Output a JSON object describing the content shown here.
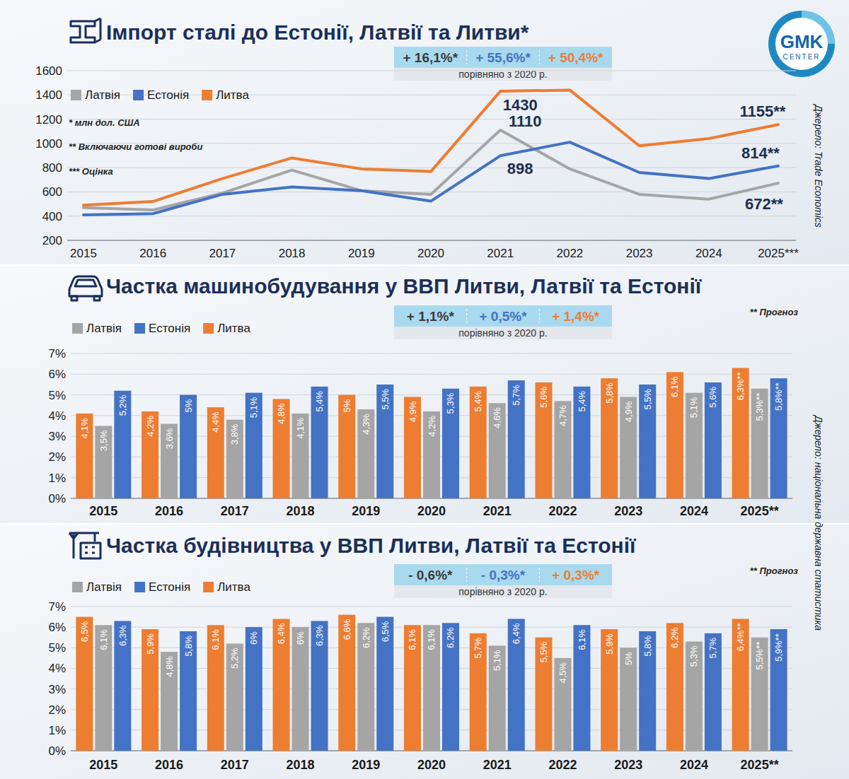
{
  "logo": {
    "line1": "GMK",
    "line2": "CENTER"
  },
  "chart_data": [
    {
      "type": "line",
      "title": "Імпорт сталі до Естонії, Латвії та Литви*",
      "subtitle": "порівняно з 2020 р.",
      "annotations": [
        "* млн дол. США",
        "** Включаючи готові вироби",
        "*** Оцінка"
      ],
      "source": "Джерело: Trade Economics",
      "categories": [
        "2015",
        "2016",
        "2017",
        "2018",
        "2019",
        "2020",
        "2021",
        "2022",
        "2023",
        "2024",
        "2025***"
      ],
      "ylim": [
        200,
        1600
      ],
      "yticks": [
        200,
        400,
        600,
        800,
        1000,
        1200,
        1400,
        1600
      ],
      "grid": true,
      "legend": "top-left",
      "series": [
        {
          "name": "Латвія",
          "color": "#a5a5a5",
          "change_label": "+ 16,1%*",
          "values": [
            470,
            450,
            590,
            780,
            610,
            579,
            1110,
            790,
            580,
            540,
            672
          ],
          "value_labels": [
            null,
            null,
            null,
            null,
            null,
            null,
            "1110",
            null,
            null,
            null,
            "672**"
          ]
        },
        {
          "name": "Естонія",
          "color": "#4472c4",
          "change_label": "+ 55,6%*",
          "values": [
            410,
            420,
            580,
            640,
            610,
            523,
            898,
            1010,
            760,
            710,
            814
          ],
          "value_labels": [
            null,
            null,
            null,
            null,
            null,
            null,
            "898",
            null,
            null,
            null,
            "814**"
          ]
        },
        {
          "name": "Литва",
          "color": "#ed7d31",
          "change_label": "+ 50,4%*",
          "values": [
            490,
            520,
            710,
            880,
            790,
            768,
            1430,
            1440,
            980,
            1040,
            1155
          ],
          "value_labels": [
            null,
            null,
            null,
            null,
            null,
            null,
            "1430",
            null,
            null,
            null,
            "1155**"
          ]
        }
      ]
    },
    {
      "type": "bar",
      "title": "Частка машинобудування у ВВП Литви, Латвії та Естонії",
      "subtitle": "порівняно з 2020 р.",
      "annotations": [
        "** Прогноз"
      ],
      "source": "Джерело: національна державна статистика",
      "categories": [
        "2015",
        "2016",
        "2017",
        "2018",
        "2019",
        "2020",
        "2021",
        "2022",
        "2023",
        "2024",
        "2025**"
      ],
      "ylim": [
        0,
        7
      ],
      "yticks": [
        {
          "value": 0,
          "label": "0%"
        },
        {
          "value": 1,
          "label": "1%"
        },
        {
          "value": 2,
          "label": "2%"
        },
        {
          "value": 3,
          "label": "3%"
        },
        {
          "value": 4,
          "label": "4%"
        },
        {
          "value": 5,
          "label": "5%"
        },
        {
          "value": 6,
          "label": "6%"
        },
        {
          "value": 7,
          "label": "7%"
        }
      ],
      "grid": true,
      "legend": "top-left",
      "data_labels": true,
      "series": [
        {
          "name": "Латвія",
          "color": "#a5a5a5",
          "change_label": "+ 1,1%*",
          "values": [
            3.5,
            3.6,
            3.8,
            4.1,
            4.3,
            4.2,
            4.6,
            4.7,
            4.9,
            5.1,
            5.3
          ],
          "value_labels": [
            "3,5%",
            "3,6%",
            "3,8%",
            "4,1%",
            "4,3%",
            "4,2%",
            "4,6%",
            "4,7%",
            "4,9%",
            "5,1%",
            "5,3%**"
          ]
        },
        {
          "name": "Естонія",
          "color": "#4472c4",
          "change_label": "+ 0,5%*",
          "values": [
            5.2,
            5,
            5.1,
            5.4,
            5.5,
            5.3,
            5.7,
            5.4,
            5.5,
            5.6,
            5.8
          ],
          "value_labels": [
            "5,2%",
            "5%",
            "5,1%",
            "5,4%",
            "5,5%",
            "5,3%",
            "5,7%",
            "5,4%",
            "5,5%",
            "5,6%",
            "5,8%**"
          ]
        },
        {
          "name": "Литва",
          "color": "#ed7d31",
          "change_label": "+ 1,4%*",
          "values": [
            4.1,
            4.2,
            4.4,
            4.8,
            5,
            4.9,
            5.4,
            5.6,
            5.8,
            6.1,
            6.3
          ],
          "value_labels": [
            "4,1%",
            "4,2%",
            "4,4%",
            "4,8%",
            "5%",
            "4,9%",
            "5,4%",
            "5,6%",
            "5,8%",
            "6,1%",
            "6,3%**"
          ]
        }
      ]
    },
    {
      "type": "bar",
      "title": "Частка будівництва у ВВП Литви, Латвії та Естонії",
      "subtitle": "порівняно з 2020 р.",
      "annotations": [
        "** Прогноз"
      ],
      "categories": [
        "2015",
        "2016",
        "2017",
        "2018",
        "2019",
        "2020",
        "2021",
        "2022",
        "2023",
        "2024",
        "2025**"
      ],
      "ylim": [
        0,
        7
      ],
      "yticks": [
        {
          "value": 0,
          "label": "0%"
        },
        {
          "value": 1,
          "label": "1%"
        },
        {
          "value": 2,
          "label": "2%"
        },
        {
          "value": 3,
          "label": "3%"
        },
        {
          "value": 4,
          "label": "4%"
        },
        {
          "value": 5,
          "label": "5%"
        },
        {
          "value": 6,
          "label": "6%"
        },
        {
          "value": 7,
          "label": "7%"
        }
      ],
      "grid": true,
      "legend": "top-left",
      "data_labels": true,
      "series": [
        {
          "name": "Латвія",
          "color": "#a5a5a5",
          "change_label": "- 0,6%*",
          "values": [
            6.1,
            4.8,
            5.2,
            6,
            6.2,
            6.1,
            5.1,
            4.5,
            5,
            5.3,
            5.5
          ],
          "value_labels": [
            "6,1%",
            "4,8%",
            "5,2%",
            "6%",
            "6,2%",
            "6,1%",
            "5,1%",
            "4,5%",
            "5%",
            "5,3%",
            "5,5%**"
          ]
        },
        {
          "name": "Естонія",
          "color": "#4472c4",
          "change_label": "- 0,3%*",
          "values": [
            6.3,
            5.8,
            6,
            6.3,
            6.5,
            6.2,
            6.4,
            6.1,
            5.8,
            5.7,
            5.9
          ],
          "value_labels": [
            "6,3%",
            "5,8%",
            "6%",
            "6,3%",
            "6,5%",
            "6,2%",
            "6,4%",
            "6,1%",
            "5,8%",
            "5,7%",
            "5,9%**"
          ]
        },
        {
          "name": "Литва",
          "color": "#ed7d31",
          "change_label": "+ 0,3%*",
          "values": [
            6.5,
            5.9,
            6.1,
            6.4,
            6.6,
            6.1,
            5.7,
            5.5,
            5.9,
            6.2,
            6.4
          ],
          "value_labels": [
            "6,5%",
            "5,9%",
            "6,1%",
            "6,4%",
            "6,6%",
            "6,1%",
            "5,7%",
            "5,5%",
            "5,9%",
            "6,2%",
            "6,4%**"
          ]
        }
      ]
    }
  ]
}
